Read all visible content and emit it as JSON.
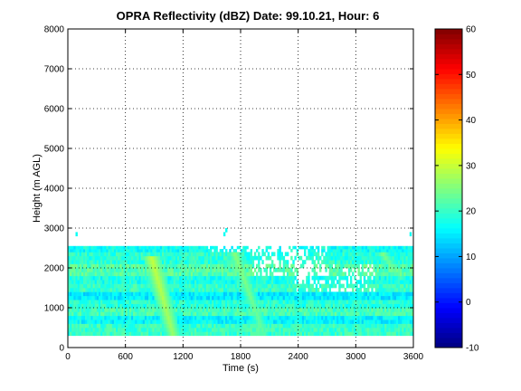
{
  "chart_data": {
    "type": "heatmap",
    "title": "OPRA Reflectivity (dBZ)  Date: 99.10.21, Hour: 6",
    "xlabel": "Time (s)",
    "ylabel": "Height (m AGL)",
    "xlim": [
      0,
      3600
    ],
    "ylim": [
      0,
      8000
    ],
    "xticks": [
      0,
      600,
      1200,
      1800,
      2400,
      3000,
      3600
    ],
    "yticks": [
      0,
      1000,
      2000,
      3000,
      4000,
      5000,
      6000,
      7000,
      8000
    ],
    "grid": true,
    "grid_style": "dotted",
    "colorbar": {
      "colormap": "jet",
      "min": -10,
      "max": 60,
      "ticks": [
        -10,
        0,
        10,
        20,
        30,
        40,
        50,
        60
      ]
    },
    "echo_layers_dbz": [
      {
        "bottom": 300,
        "top": 600,
        "value": 20
      },
      {
        "bottom": 600,
        "top": 800,
        "value": 16
      },
      {
        "bottom": 800,
        "top": 1000,
        "value": 21
      },
      {
        "bottom": 1000,
        "top": 1200,
        "value": 19
      },
      {
        "bottom": 1200,
        "top": 1400,
        "value": 15
      },
      {
        "bottom": 1400,
        "top": 1600,
        "value": 20
      },
      {
        "bottom": 1600,
        "top": 1800,
        "value": 18
      },
      {
        "bottom": 1800,
        "top": 2100,
        "value": 22
      },
      {
        "bottom": 2100,
        "top": 2400,
        "value": 19
      },
      {
        "bottom": 2400,
        "top": 2550,
        "value": 17
      }
    ],
    "fall_streaks": [
      {
        "x_top": 880,
        "y_top": 2200,
        "x_bottom": 1100,
        "y_bottom": 300,
        "peak_dbz": 30
      },
      {
        "x_top": 1750,
        "y_top": 2300,
        "x_bottom": 2050,
        "y_bottom": 300,
        "peak_dbz": 26
      },
      {
        "x_top": 3300,
        "y_top": 2300,
        "x_bottom": 3450,
        "y_bottom": 1800,
        "peak_dbz": 25
      }
    ]
  }
}
